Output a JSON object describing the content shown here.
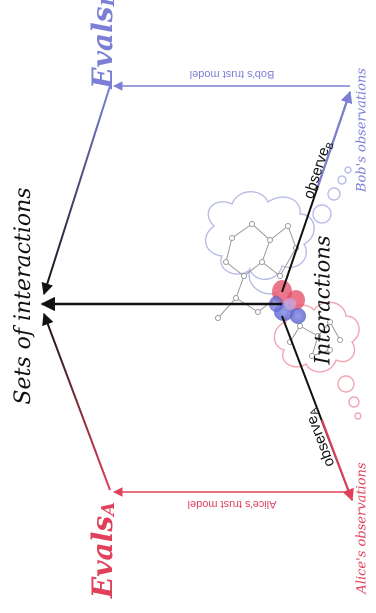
{
  "labels": {
    "evals_a": "Evals",
    "evals_a_sub": "A",
    "evals_b": "Evals",
    "evals_b_sub": "B",
    "sets_of_interactions": "Sets of interactions",
    "interactions": "Interactions",
    "observe_a": "observe",
    "observe_a_sub": "A",
    "observe_b": "observe",
    "observe_b_sub": "B",
    "alice_trust_model": "Alice's trust model",
    "bob_trust_model": "Bob's trust model",
    "alice_observations": "Alice's observations",
    "bob_observations": "Bob's observations"
  },
  "colors": {
    "alice": "#e0405a",
    "bob": "#7b7fd6",
    "black": "#111111",
    "cloud": "#b9bde6",
    "cloud_pink": "#f2a6b3",
    "graph": "#9a9a9a"
  }
}
